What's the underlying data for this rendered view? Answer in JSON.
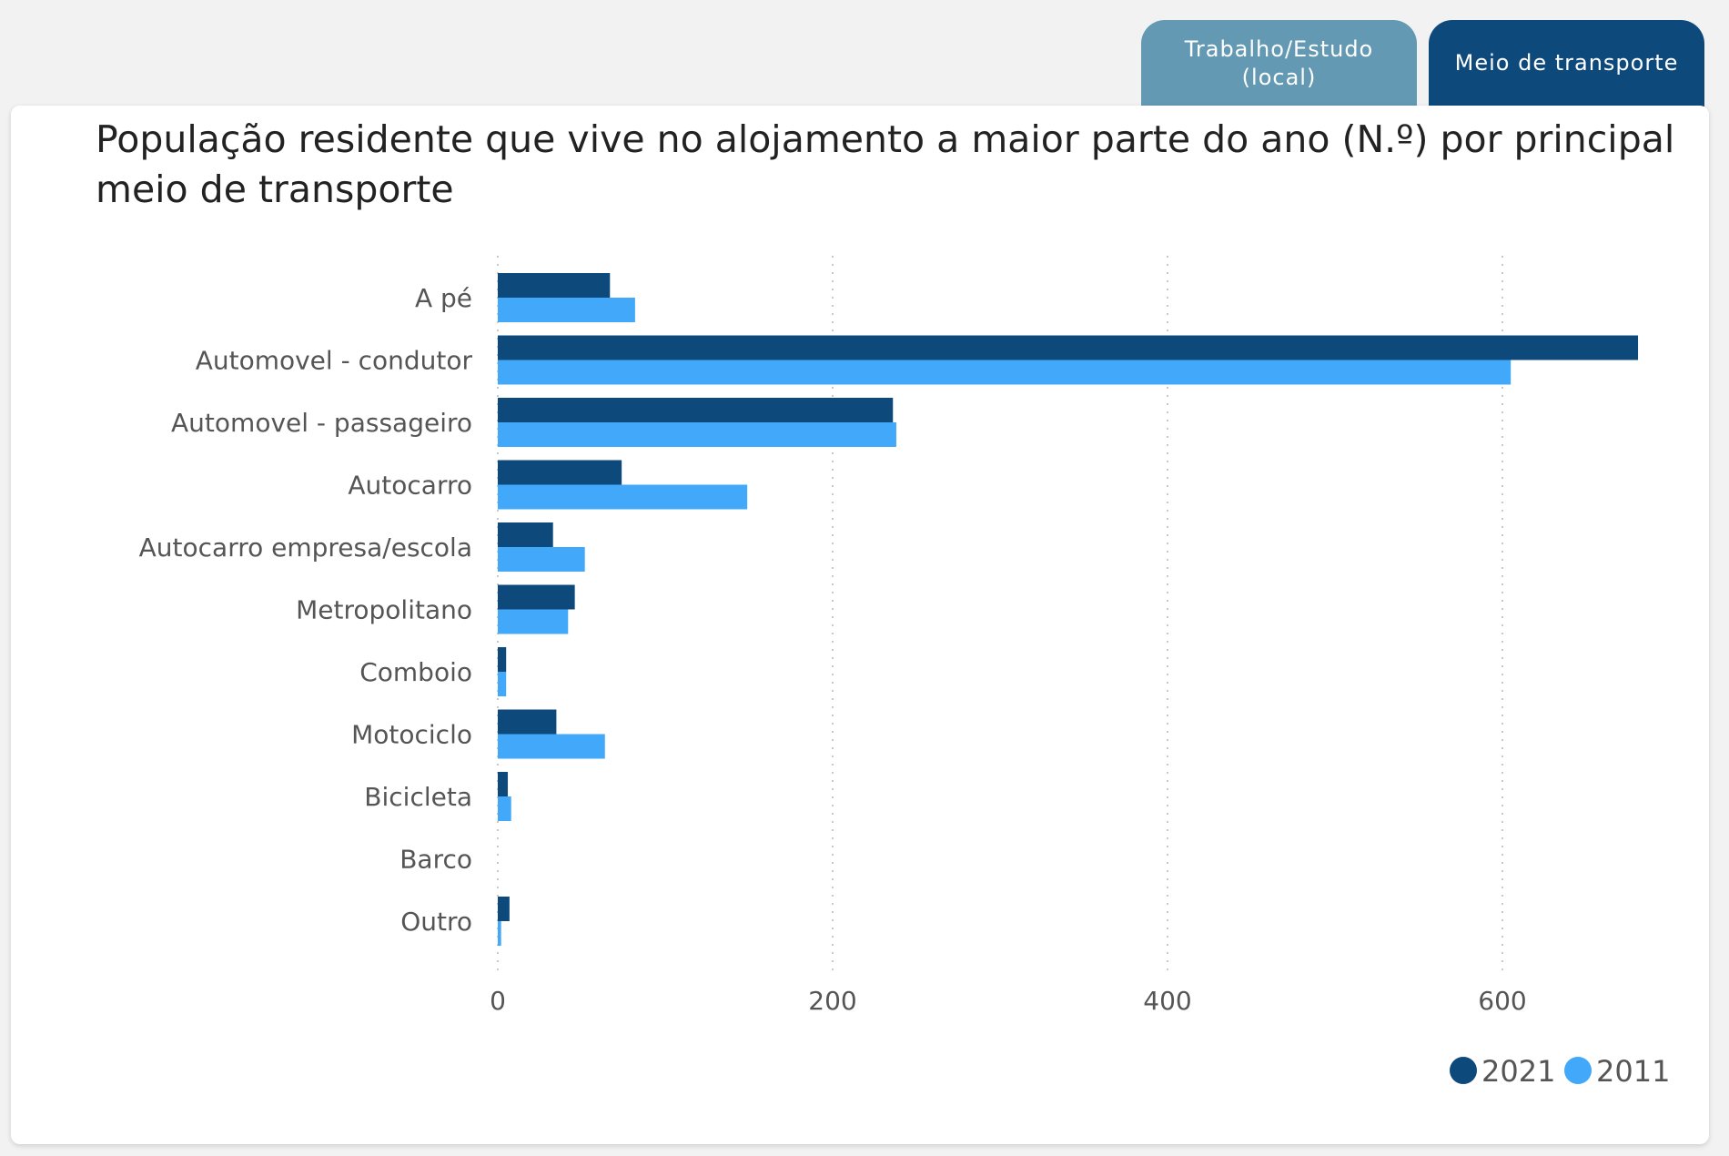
{
  "tabs": [
    {
      "label": "Trabalho/Estudo (local)",
      "active": false
    },
    {
      "label": "Meio de transporte",
      "active": true
    }
  ],
  "chart_data": {
    "type": "bar",
    "orientation": "horizontal",
    "title": "População residente que vive no alojamento a maior parte do ano (N.º) por principal meio de transporte",
    "categories": [
      "A pé",
      "Automovel - condutor",
      "Automovel - passageiro",
      "Autocarro",
      "Autocarro empresa/escola",
      "Metropolitano",
      "Comboio",
      "Motociclo",
      "Bicicleta",
      "Barco",
      "Outro"
    ],
    "series": [
      {
        "name": "2021",
        "color": "#0e497c",
        "values": [
          67,
          681,
          236,
          74,
          33,
          46,
          5,
          35,
          6,
          0,
          7
        ]
      },
      {
        "name": "2011",
        "color": "#42a8fa",
        "values": [
          82,
          605,
          238,
          149,
          52,
          42,
          5,
          64,
          8,
          0,
          2
        ]
      }
    ],
    "xlim": [
      0,
      690
    ],
    "xticks": [
      0,
      200,
      400,
      600
    ],
    "xtick_labels": [
      "0",
      "200",
      "400",
      "600"
    ],
    "grid": true,
    "legend_position": "bottom-right"
  }
}
